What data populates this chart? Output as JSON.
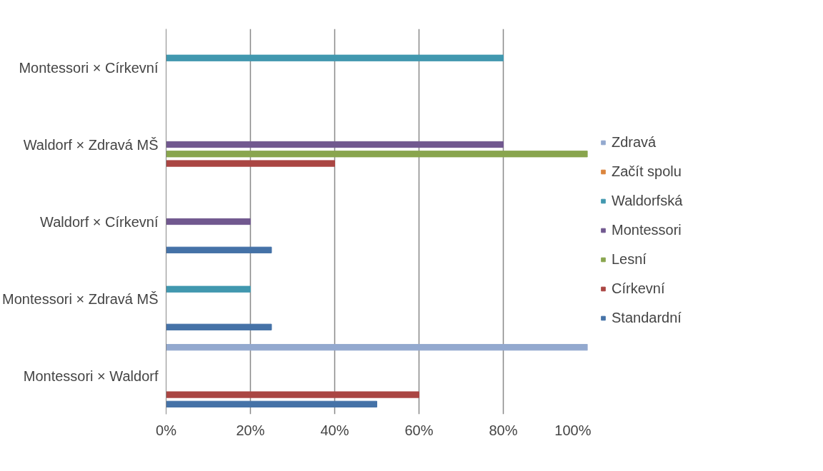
{
  "chart_data": {
    "type": "bar",
    "orientation": "horizontal",
    "categories": [
      "Montessori × Církevní",
      "Waldorf × Zdravá MŠ",
      "Waldorf × Církevní",
      "Montessori × Zdravá MŠ",
      "Montessori × Waldorf"
    ],
    "series": [
      {
        "name": "Zdravá",
        "color": "#93a9cf",
        "values": [
          null,
          null,
          null,
          null,
          100
        ]
      },
      {
        "name": "Začít spolu",
        "color": "#db843d",
        "values": [
          null,
          null,
          null,
          null,
          null
        ]
      },
      {
        "name": "Waldorfská",
        "color": "#4198af",
        "values": [
          80,
          null,
          null,
          20,
          null
        ]
      },
      {
        "name": "Montessori",
        "color": "#71588f",
        "values": [
          null,
          80,
          20,
          null,
          null
        ]
      },
      {
        "name": "Lesní",
        "color": "#89a54e",
        "values": [
          null,
          100,
          null,
          null,
          null
        ]
      },
      {
        "name": "Církevní",
        "color": "#aa4643",
        "values": [
          null,
          40,
          null,
          null,
          60
        ]
      },
      {
        "name": "Standardní",
        "color": "#4572a7",
        "values": [
          null,
          null,
          25,
          25,
          50
        ]
      }
    ],
    "xlim": [
      0,
      100
    ],
    "xticks": [
      {
        "value": 0,
        "label": "0%"
      },
      {
        "value": 20,
        "label": "20%"
      },
      {
        "value": 40,
        "label": "40%"
      },
      {
        "value": 60,
        "label": "60%"
      },
      {
        "value": 80,
        "label": "80%"
      },
      {
        "value": 100,
        "label": "100%"
      }
    ],
    "grid": "x",
    "legend": "right"
  }
}
